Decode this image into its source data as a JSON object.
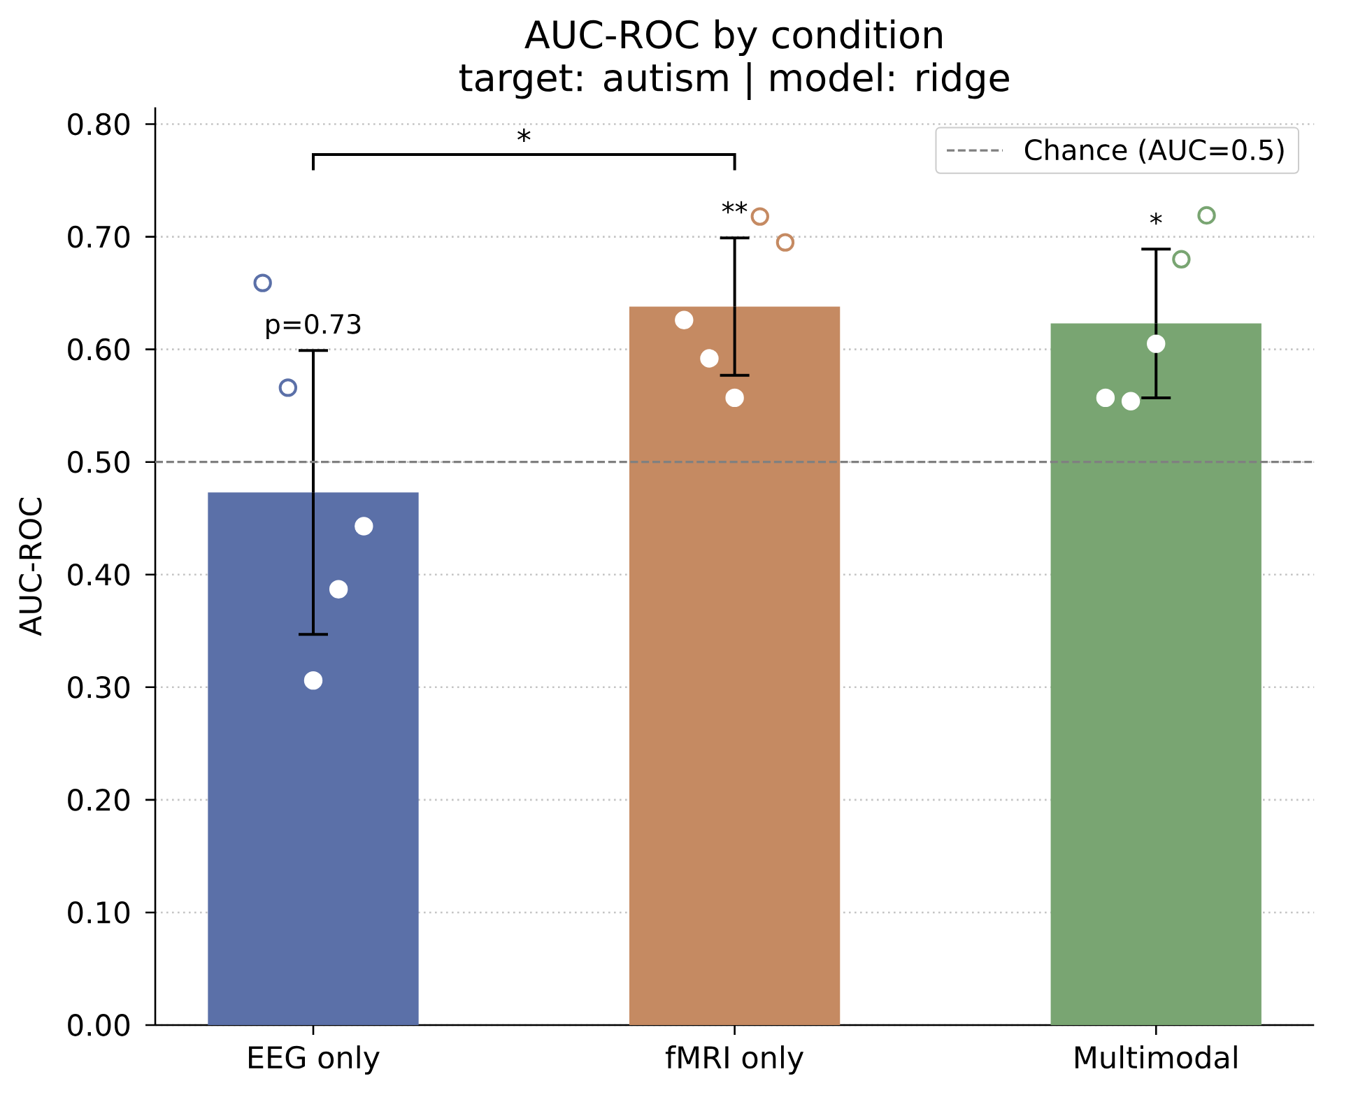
{
  "chart_data": {
    "type": "bar",
    "title": "AUC-ROC by condition",
    "subtitle": "target: autism | model: ridge",
    "ylabel": "AUC-ROC",
    "categories": [
      "EEG only",
      "fMRI only",
      "Multimodal"
    ],
    "series": [
      {
        "values": [
          0.473,
          0.638,
          0.623
        ],
        "colors": [
          "#5b70a8",
          "#c58a62",
          "#79a572"
        ],
        "errors": [
          0.126,
          0.061,
          0.066
        ]
      },
      {
        "type": "scatter",
        "marker": "circle",
        "x": [
          "EEG only",
          "EEG only",
          "EEG only",
          "EEG only",
          "EEG only",
          "fMRI only",
          "fMRI only",
          "fMRI only",
          "fMRI only",
          "fMRI only",
          "Multimodal",
          "Multimodal",
          "Multimodal",
          "Multimodal",
          "Multimodal"
        ],
        "values": [
          0.659,
          0.566,
          0.306,
          0.387,
          0.443,
          0.626,
          0.592,
          0.557,
          0.718,
          0.695,
          0.557,
          0.554,
          0.605,
          0.68,
          0.719
        ],
        "colors": [
          "#5b70a8",
          "#5b70a8",
          "#ffffff",
          "#ffffff",
          "#ffffff",
          "#ffffff",
          "#ffffff",
          "#ffffff",
          "#c58a62",
          "#c58a62",
          "#ffffff",
          "#ffffff",
          "#ffffff",
          "#79a572",
          "#79a572"
        ]
      }
    ],
    "ylim": [
      0,
      0.815
    ],
    "yticks": [
      {
        "value": 0,
        "label": "0.00"
      },
      {
        "value": 0.1,
        "label": "0.10"
      },
      {
        "value": 0.2,
        "label": "0.20"
      },
      {
        "value": 0.3,
        "label": "0.30"
      },
      {
        "value": 0.4,
        "label": "0.40"
      },
      {
        "value": 0.5,
        "label": "0.50"
      },
      {
        "value": 0.6,
        "label": "0.60"
      },
      {
        "value": 0.7,
        "label": "0.70"
      },
      {
        "value": 0.8,
        "label": "0.80"
      }
    ],
    "grid": "y",
    "legend": "top right",
    "ref_lines": [
      {
        "axis": "y",
        "value": 0.5,
        "label": "Chance (AUC=0.5)",
        "color": "#808080",
        "line_style": "dashed"
      }
    ],
    "annotations": [
      "p=0.73",
      "**",
      "*",
      "*"
    ]
  }
}
